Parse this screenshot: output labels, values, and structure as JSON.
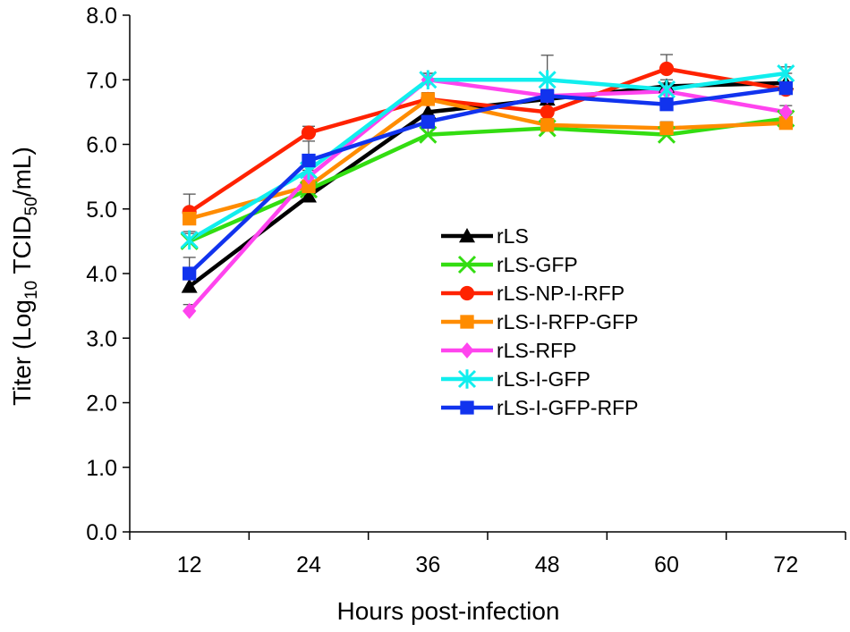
{
  "chart_data": {
    "type": "line",
    "title": "",
    "xlabel": "Hours post-infection",
    "ylabel": {
      "prefix": "Titer (Log",
      "log_sub": "10",
      "middle": " TCID",
      "tcid_sub": "50",
      "suffix": "/mL)"
    },
    "ylim": [
      0,
      8
    ],
    "yticks": [
      "0.0",
      "1.0",
      "2.0",
      "3.0",
      "4.0",
      "5.0",
      "6.0",
      "7.0",
      "8.0"
    ],
    "categories": [
      "12",
      "24",
      "36",
      "48",
      "60",
      "72"
    ],
    "grid": false,
    "legend_position": "center",
    "series": [
      {
        "name": "rLS",
        "color": "#000000",
        "marker": "triangle",
        "values": [
          3.8,
          5.2,
          6.5,
          6.7,
          6.9,
          6.95
        ],
        "errors": [
          0.15,
          0.15,
          0.15,
          0.1,
          0.1,
          0.15
        ]
      },
      {
        "name": "rLS-GFP",
        "color": "#33dd11",
        "marker": "x",
        "values": [
          4.5,
          5.3,
          6.15,
          6.25,
          6.15,
          6.4
        ],
        "errors": [
          0.15,
          0.15,
          0.1,
          0.1,
          0.1,
          0.1
        ]
      },
      {
        "name": "rLS-NP-I-RFP",
        "color": "#ff2200",
        "marker": "circle",
        "values": [
          4.95,
          6.18,
          6.7,
          6.5,
          7.17,
          6.85
        ],
        "errors": [
          0.28,
          0.1,
          0.1,
          0.15,
          0.22,
          0.1
        ]
      },
      {
        "name": "rLS-I-RFP-GFP",
        "color": "#ff8c00",
        "marker": "square",
        "values": [
          4.85,
          5.35,
          6.7,
          6.3,
          6.25,
          6.33
        ],
        "errors": [
          0.15,
          0.15,
          0.1,
          0.1,
          0.1,
          0.1
        ]
      },
      {
        "name": "rLS-RFP",
        "color": "#ff44ee",
        "marker": "diamond",
        "values": [
          3.42,
          5.5,
          7.0,
          6.75,
          6.82,
          6.5
        ],
        "errors": [
          0.1,
          0.1,
          0.1,
          0.1,
          0.1,
          0.1
        ]
      },
      {
        "name": "rLS-I-GFP",
        "color": "#11eeee",
        "marker": "asterisk",
        "values": [
          4.52,
          5.6,
          7.0,
          7.0,
          6.85,
          7.1
        ],
        "errors": [
          0.1,
          0.1,
          0.1,
          0.38,
          0.1,
          0.1
        ]
      },
      {
        "name": "rLS-I-GFP-RFP",
        "color": "#1133ee",
        "marker": "square",
        "values": [
          4.0,
          5.75,
          6.35,
          6.75,
          6.62,
          6.87
        ],
        "errors": [
          0.25,
          0.3,
          0.1,
          0.1,
          0.1,
          0.1
        ]
      }
    ]
  }
}
